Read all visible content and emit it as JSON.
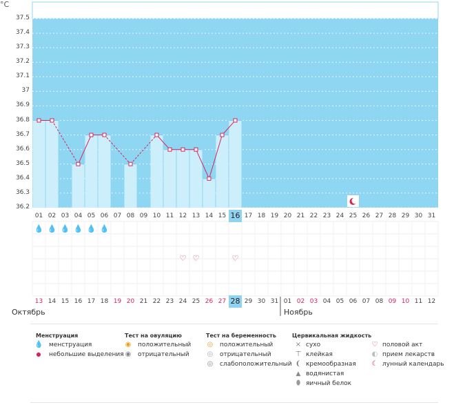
{
  "chart": {
    "unit_label": "°C",
    "y_ticks": [
      "37.5",
      "37.4",
      "37.3",
      "37.2",
      "37.1",
      "37",
      "36.9",
      "36.8",
      "36.7",
      "36.6",
      "36.5",
      "36.4",
      "36.3",
      "36.2"
    ]
  },
  "chart_data": {
    "type": "line",
    "ylabel": "°C",
    "ylim": [
      36.2,
      37.5
    ],
    "x": [
      "01",
      "02",
      "03",
      "04",
      "05",
      "06",
      "07",
      "08",
      "09",
      "10",
      "11",
      "12",
      "13",
      "14",
      "15",
      "16"
    ],
    "series": [
      {
        "values": [
          36.8,
          36.8,
          null,
          36.5,
          36.7,
          36.7,
          null,
          36.5,
          null,
          36.7,
          36.6,
          36.6,
          36.6,
          36.4,
          36.7,
          36.8
        ]
      }
    ]
  },
  "cycle_days": [
    "01",
    "02",
    "03",
    "04",
    "05",
    "06",
    "07",
    "08",
    "09",
    "10",
    "11",
    "12",
    "13",
    "14",
    "15",
    "16",
    "17",
    "18",
    "19",
    "20",
    "21",
    "22",
    "23",
    "24",
    "25",
    "26",
    "27",
    "28",
    "29",
    "30",
    "31"
  ],
  "today_index": 15,
  "moon_day_index": 24,
  "menstruation_days": [
    0,
    1,
    2,
    3,
    4,
    5
  ],
  "intercourse_days": [
    11,
    12,
    15
  ],
  "calendar_dates": [
    {
      "d": "13",
      "red": true
    },
    {
      "d": "14",
      "red": false
    },
    {
      "d": "15",
      "red": false
    },
    {
      "d": "16",
      "red": false
    },
    {
      "d": "17",
      "red": false
    },
    {
      "d": "18",
      "red": false
    },
    {
      "d": "19",
      "red": true
    },
    {
      "d": "20",
      "red": true
    },
    {
      "d": "21",
      "red": false
    },
    {
      "d": "22",
      "red": false
    },
    {
      "d": "23",
      "red": false
    },
    {
      "d": "24",
      "red": false
    },
    {
      "d": "25",
      "red": false
    },
    {
      "d": "26",
      "red": true
    },
    {
      "d": "27",
      "red": true
    },
    {
      "d": "28",
      "red": false
    },
    {
      "d": "29",
      "red": false
    },
    {
      "d": "30",
      "red": false
    },
    {
      "d": "31",
      "red": false
    },
    {
      "d": "01",
      "red": false
    },
    {
      "d": "02",
      "red": true
    },
    {
      "d": "03",
      "red": true
    },
    {
      "d": "04",
      "red": false
    },
    {
      "d": "05",
      "red": false
    },
    {
      "d": "06",
      "red": false
    },
    {
      "d": "07",
      "red": false
    },
    {
      "d": "08",
      "red": false
    },
    {
      "d": "09",
      "red": true
    },
    {
      "d": "10",
      "red": true
    },
    {
      "d": "11",
      "red": false
    },
    {
      "d": "12",
      "red": false
    }
  ],
  "months": {
    "first": "Октябрь",
    "second": "Ноябрь"
  },
  "legend": {
    "menstruation": {
      "title": "Менструация",
      "items": [
        "менструация",
        "небольшие выделения"
      ]
    },
    "ovulation_test": {
      "title": "Тест на овуляцию",
      "items": [
        "положительный",
        "отрицательный"
      ]
    },
    "pregnancy_test": {
      "title": "Тест на беременность",
      "items": [
        "положительный",
        "отрицательный",
        "слабоположительный"
      ]
    },
    "cervical_fluid": {
      "title": "Цервикальная жидкость",
      "items": [
        "сухо",
        "клейкая",
        "кремообразная",
        "водянистая",
        "яичный белок"
      ]
    },
    "other": {
      "items": [
        "половой акт",
        "прием лекарств",
        "лунный календарь"
      ]
    }
  },
  "colors": {
    "chart_bg": "#8fd6f3",
    "bar": "#cdeefb",
    "line": "#d6245a",
    "red_text": "#d6245a"
  }
}
